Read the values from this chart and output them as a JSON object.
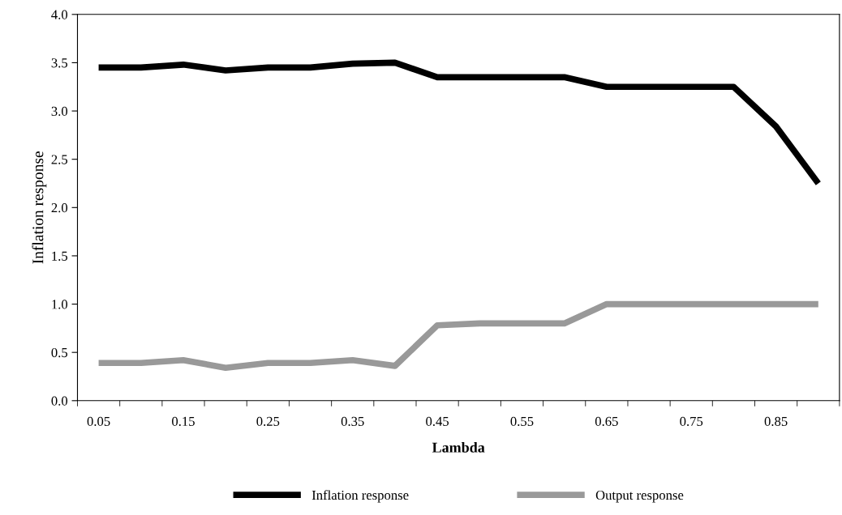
{
  "chart_data": {
    "type": "line",
    "xlabel": "Lambda",
    "ylabel": "Inflation response",
    "categories": [
      "0.05",
      null,
      "0.15",
      null,
      "0.25",
      null,
      "0.35",
      null,
      "0.45",
      null,
      "0.55",
      null,
      "0.65",
      null,
      "0.75",
      null,
      "0.85",
      null
    ],
    "series": [
      {
        "name": "Inflation response",
        "color": "#000000",
        "values": [
          3.45,
          3.45,
          3.48,
          3.42,
          3.45,
          3.45,
          3.49,
          3.5,
          3.35,
          3.35,
          3.35,
          3.35,
          3.25,
          3.25,
          3.25,
          3.25,
          2.84,
          2.25
        ]
      },
      {
        "name": "Output response",
        "color": "#999999",
        "values": [
          0.39,
          0.39,
          0.42,
          0.34,
          0.39,
          0.39,
          0.42,
          0.36,
          0.78,
          0.8,
          0.8,
          0.8,
          1.0,
          1.0,
          1.0,
          1.0,
          1.0,
          1.0
        ]
      }
    ],
    "ylim": [
      0,
      4
    ],
    "yticks": [
      {
        "value": 0,
        "label": "0.0"
      },
      {
        "value": 0.5,
        "label": "0.5"
      },
      {
        "value": 1,
        "label": "1.0"
      },
      {
        "value": 1.5,
        "label": "1.5"
      },
      {
        "value": 2,
        "label": "2.0"
      },
      {
        "value": 2.5,
        "label": "2.5"
      },
      {
        "value": 3,
        "label": "3.0"
      },
      {
        "value": 3.5,
        "label": "3.5"
      },
      {
        "value": 4,
        "label": "4.0"
      }
    ],
    "legend": "bottom",
    "grid": false,
    "line_style": "solid",
    "marker": "none"
  }
}
